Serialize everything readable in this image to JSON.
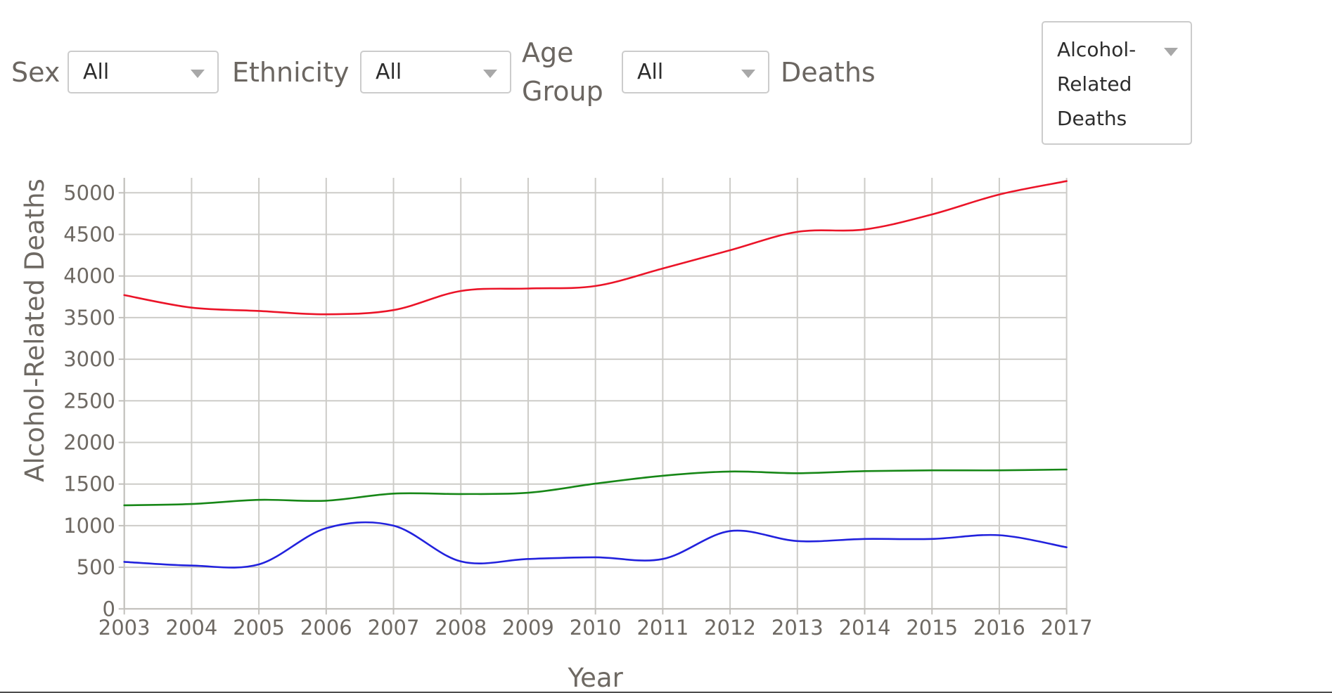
{
  "filters": {
    "sex": {
      "label": "Sex",
      "value": "All"
    },
    "ethnicity": {
      "label": "Ethnicity",
      "value": "All"
    },
    "age_group": {
      "label": "Age Group",
      "value": "All"
    },
    "deaths": {
      "label": "Deaths",
      "value": "Alcohol-Related Deaths"
    }
  },
  "chart_data": {
    "type": "line",
    "title": "",
    "xlabel": "Year",
    "ylabel": "Alcohol-Related Deaths",
    "x": [
      2003,
      2004,
      2005,
      2006,
      2007,
      2008,
      2009,
      2010,
      2011,
      2012,
      2013,
      2014,
      2015,
      2016,
      2017
    ],
    "series": [
      {
        "name": "red-line",
        "color": "#eb1428",
        "values": [
          3770,
          3620,
          3580,
          3540,
          3590,
          3820,
          3850,
          3880,
          4090,
          4310,
          4530,
          4560,
          4740,
          4980,
          5140
        ]
      },
      {
        "name": "green-line",
        "color": "#178717",
        "values": [
          1245,
          1260,
          1310,
          1300,
          1385,
          1380,
          1395,
          1505,
          1600,
          1650,
          1630,
          1655,
          1665,
          1665,
          1675
        ]
      },
      {
        "name": "blue-line",
        "color": "#2222dd",
        "values": [
          565,
          520,
          535,
          970,
          1000,
          570,
          600,
          620,
          600,
          935,
          815,
          840,
          840,
          885,
          740
        ]
      }
    ],
    "ylim": [
      0,
      5180
    ],
    "yticks": [
      0,
      500,
      1000,
      1500,
      2000,
      2500,
      3000,
      3500,
      4000,
      4500,
      5000
    ],
    "grid": true,
    "legend": "none"
  },
  "colors": {
    "grid": "#cdccc8",
    "axis": "#c2c0bc",
    "tick_text": "#6e6963",
    "label_text": "#6b6661",
    "select_border": "#cccccc",
    "chevron": "#a8a8a8"
  }
}
